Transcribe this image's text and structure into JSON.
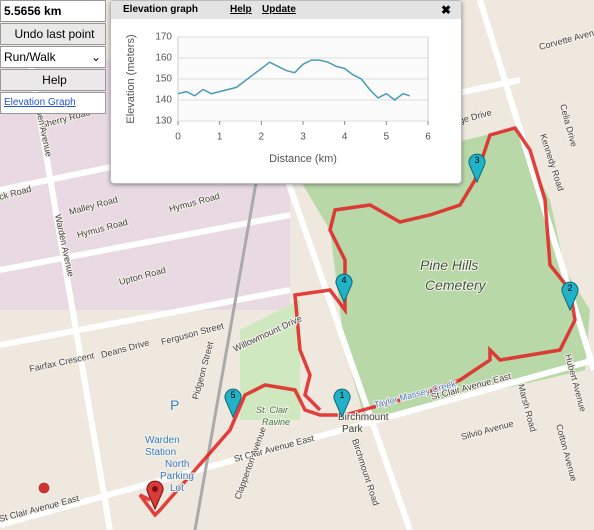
{
  "panel": {
    "distance": "5.5656 km",
    "undo": "Undo last point",
    "mode": "Run/Walk",
    "help": "Help",
    "link": "Elevation Graph"
  },
  "popup": {
    "title": "Elevation graph",
    "help": "Help",
    "update": "Update",
    "close": "✖"
  },
  "chart_data": {
    "type": "line",
    "x_label": "Distance (km)",
    "y_label": "Elevation (meters)",
    "x": [
      0,
      0.2,
      0.4,
      0.6,
      0.8,
      1.0,
      1.2,
      1.4,
      1.6,
      1.8,
      2.0,
      2.2,
      2.4,
      2.6,
      2.8,
      3.0,
      3.2,
      3.4,
      3.6,
      3.8,
      4.0,
      4.2,
      4.4,
      4.6,
      4.8,
      5.0,
      5.2,
      5.4,
      5.56
    ],
    "values": [
      143,
      144,
      142,
      145,
      143,
      144,
      145,
      146,
      149,
      152,
      155,
      158,
      156,
      154,
      153,
      157,
      159,
      159,
      158,
      156,
      155,
      152,
      150,
      145,
      141,
      143,
      140,
      143,
      142
    ],
    "color": "#4a9ab8",
    "xlim": [
      0,
      6
    ],
    "ylim": [
      130,
      170
    ],
    "xticks": [
      0,
      1,
      2,
      3,
      4,
      5,
      6
    ],
    "yticks": [
      130,
      140,
      150,
      160,
      170
    ],
    "grid": true
  },
  "map": {
    "markers": [
      "1",
      "2",
      "3",
      "4",
      "5"
    ],
    "labels": [
      "Sherry Road",
      "ck Road",
      "Malley Road",
      "Hymus Road",
      "Hymus Road",
      "Upton Road",
      "Warden Avenue",
      "Warden Avenue",
      "Deans Drive",
      "Ferguson Street",
      "Fairfax Crescent",
      "Pidgeon Street",
      "Willowmount Drive",
      "St Clair Avenue East",
      "St Clair Avenue East",
      "St Clair Avenue East",
      "Warden",
      "Station",
      "North",
      "Parking",
      "Lot",
      "St. Clair",
      "Ravine",
      "Birchmount",
      "Park",
      "Birchmount Road",
      "Kennedy Road",
      "Pine Hills",
      "Cemetery",
      "Silvio Avenue",
      "Marsh Road",
      "Cotton Avenue",
      "Hubert Avenue",
      "Clapperton Avenue",
      "Celia Drive",
      "Corvette Avenue",
      "dge Drive",
      "Taylor Massey Creek",
      "P"
    ]
  }
}
